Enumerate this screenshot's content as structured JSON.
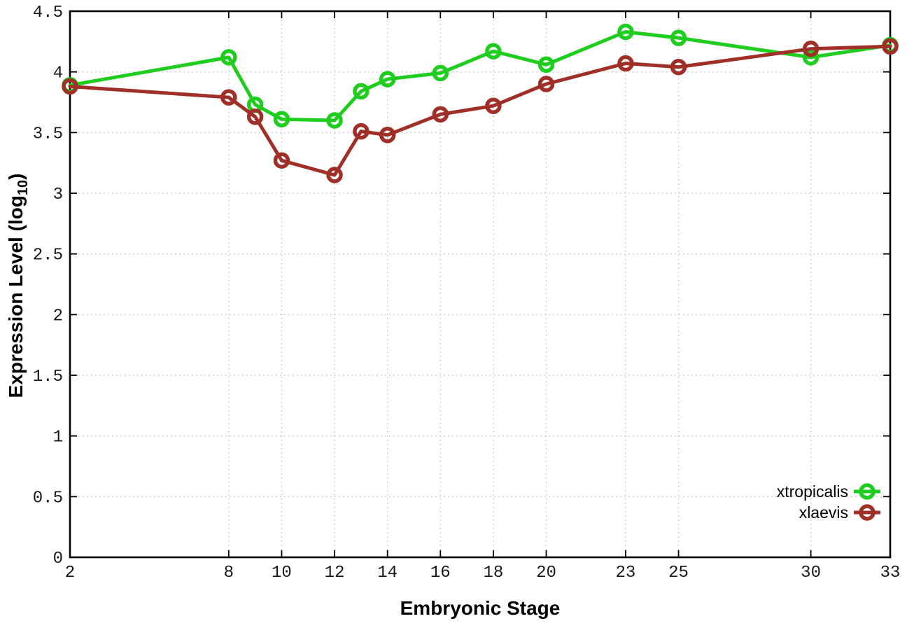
{
  "chart_data": {
    "type": "line",
    "title": "",
    "xlabel": "Embryonic Stage",
    "ylabel": "Expression Level (log10)",
    "ylabel_parts": {
      "prefix": "Expression Level (log",
      "subscript": "10",
      "suffix": ")"
    },
    "xlim": [
      2,
      33
    ],
    "ylim": [
      0,
      4.5
    ],
    "xticks": [
      2,
      8,
      10,
      12,
      14,
      16,
      18,
      20,
      23,
      25,
      30,
      33
    ],
    "yticks": [
      0,
      0.5,
      1,
      1.5,
      2,
      2.5,
      3,
      3.5,
      4,
      4.5
    ],
    "grid": true,
    "legend_position": "inside-bottom-right",
    "x": [
      2,
      8,
      9,
      10,
      12,
      13,
      14,
      16,
      18,
      20,
      23,
      25,
      30,
      33
    ],
    "series": [
      {
        "name": "xtropicalis",
        "color": "#1ecd1e",
        "marker": "open-circle",
        "values": [
          3.89,
          4.12,
          3.73,
          3.61,
          3.6,
          3.84,
          3.94,
          3.99,
          4.17,
          4.06,
          4.33,
          4.28,
          4.12,
          4.22
        ]
      },
      {
        "name": "xlaevis",
        "color": "#a02f28",
        "marker": "open-circle",
        "values": [
          3.88,
          3.79,
          3.63,
          3.27,
          3.15,
          3.51,
          3.48,
          3.65,
          3.72,
          3.9,
          4.07,
          4.04,
          4.19,
          4.21
        ]
      }
    ],
    "colors": {
      "grid": "#bfbfbf",
      "axis": "#000000",
      "tick_label": "#1a1a1a",
      "background": "#ffffff"
    }
  }
}
